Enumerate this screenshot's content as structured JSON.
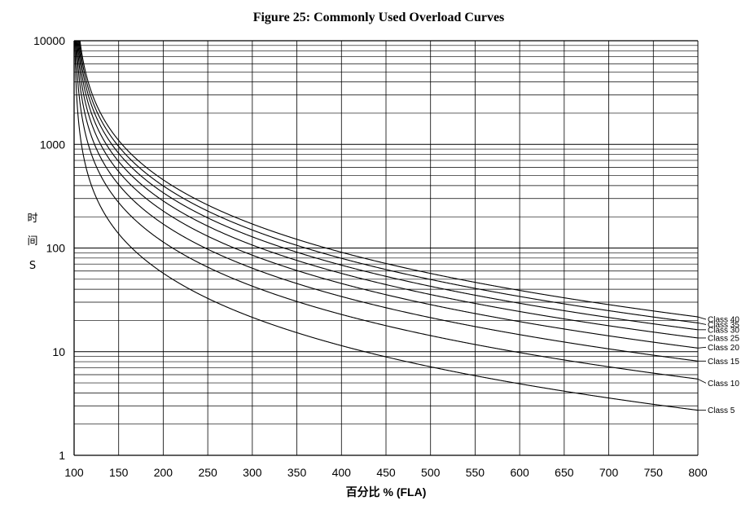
{
  "chart_data": {
    "type": "line",
    "title": "Figure 25: Commonly Used Overload Curves",
    "xlabel": "百分比 % (FLA)",
    "ylabel_lines": [
      "时",
      "间",
      "S"
    ],
    "x_ticks": [
      "100",
      "150",
      "200",
      "250",
      "300",
      "350",
      "400",
      "450",
      "500",
      "550",
      "600",
      "650",
      "700",
      "750",
      "800"
    ],
    "y_ticks": [
      "1",
      "10",
      "100",
      "1000",
      "10000"
    ],
    "xlim": [
      100,
      800
    ],
    "ylim": [
      1,
      10000
    ],
    "y_scale": "log",
    "grid": true,
    "series": [
      {
        "name": "Class 5",
        "t600": 4.9
      },
      {
        "name": "Class 10",
        "t600": 9.8
      },
      {
        "name": "Class 15",
        "t600": 14.6
      },
      {
        "name": "Class 20",
        "t600": 19.5
      },
      {
        "name": "Class 25",
        "t600": 24.4
      },
      {
        "name": "Class 30",
        "t600": 29.3
      },
      {
        "name": "Class 35",
        "t600": 34.1
      },
      {
        "name": "Class 40",
        "t600": 39.0
      }
    ]
  }
}
